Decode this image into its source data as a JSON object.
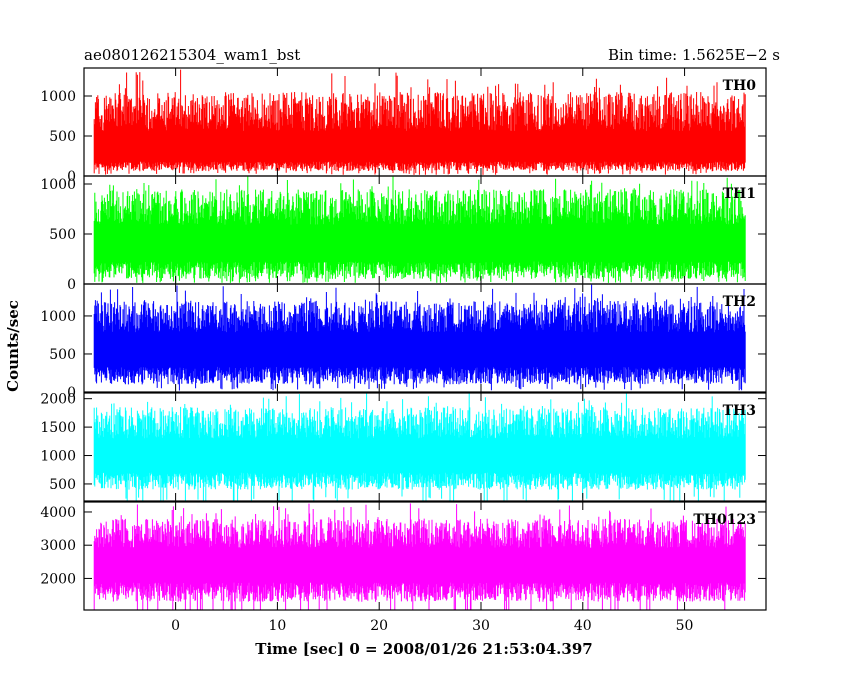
{
  "chart_data": {
    "type": "line",
    "title_left": "ae080126215304_wam1_bst",
    "title_right": "Bin time: 1.5625E−2 s",
    "xlabel": "Time [sec] 0 = 2008/01/26 21:53:04.397",
    "ylabel": "Counts/sec",
    "xlim": [
      -9,
      58
    ],
    "x_ticks": [
      0,
      10,
      20,
      30,
      40,
      50
    ],
    "x_data_range": [
      -8,
      56
    ],
    "bin_time": 0.015625,
    "grid": false,
    "panels": [
      {
        "name": "TH0",
        "color": "#ff0000",
        "ylim": [
          0,
          1350
        ],
        "y_ticks": [
          0,
          500,
          1000
        ],
        "series_summary": {
          "mean": 300,
          "typical_min": 60,
          "typical_max": 1050,
          "peak_max": 1350
        }
      },
      {
        "name": "TH1",
        "color": "#00ff00",
        "ylim": [
          0,
          1080
        ],
        "y_ticks": [
          0,
          500,
          1000
        ],
        "series_summary": {
          "mean": 400,
          "typical_min": 50,
          "typical_max": 950,
          "peak_max": 1080
        }
      },
      {
        "name": "TH2",
        "color": "#0000ff",
        "ylim": [
          0,
          1420
        ],
        "y_ticks": [
          0,
          500,
          1000
        ],
        "series_summary": {
          "mean": 560,
          "typical_min": 100,
          "typical_max": 1200,
          "peak_max": 1420
        }
      },
      {
        "name": "TH3",
        "color": "#00ffff",
        "ylim": [
          200,
          2100
        ],
        "y_ticks": [
          500,
          1000,
          1500,
          2000
        ],
        "series_summary": {
          "mean": 1000,
          "typical_min": 400,
          "typical_max": 1850,
          "peak_max": 2100
        }
      },
      {
        "name": "TH0123",
        "color": "#ff00ff",
        "ylim": [
          1050,
          4300
        ],
        "y_ticks": [
          2000,
          3000,
          4000
        ],
        "series_summary": {
          "mean": 2450,
          "typical_min": 1300,
          "typical_max": 3800,
          "peak_max": 4300
        }
      }
    ]
  }
}
